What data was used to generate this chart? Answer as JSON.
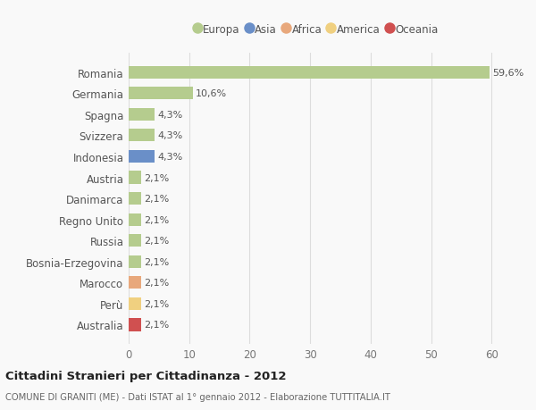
{
  "countries": [
    "Romania",
    "Germania",
    "Spagna",
    "Svizzera",
    "Indonesia",
    "Austria",
    "Danimarca",
    "Regno Unito",
    "Russia",
    "Bosnia-Erzegovina",
    "Marocco",
    "Perù",
    "Australia"
  ],
  "values": [
    59.6,
    10.6,
    4.3,
    4.3,
    4.3,
    2.1,
    2.1,
    2.1,
    2.1,
    2.1,
    2.1,
    2.1,
    2.1
  ],
  "labels": [
    "59,6%",
    "10,6%",
    "4,3%",
    "4,3%",
    "4,3%",
    "2,1%",
    "2,1%",
    "2,1%",
    "2,1%",
    "2,1%",
    "2,1%",
    "2,1%",
    "2,1%"
  ],
  "continents": [
    "Europa",
    "Europa",
    "Europa",
    "Europa",
    "Asia",
    "Europa",
    "Europa",
    "Europa",
    "Europa",
    "Europa",
    "Africa",
    "America",
    "Oceania"
  ],
  "colors": {
    "Europa": "#b5cc8e",
    "Asia": "#6a8fc8",
    "Africa": "#e8a87c",
    "America": "#f0d080",
    "Oceania": "#d05050"
  },
  "legend_entries": [
    "Europa",
    "Asia",
    "Africa",
    "America",
    "Oceania"
  ],
  "legend_colors": [
    "#b5cc8e",
    "#6a8fc8",
    "#e8a87c",
    "#f0d080",
    "#d05050"
  ],
  "xlim": [
    0,
    62
  ],
  "xticks": [
    0,
    10,
    20,
    30,
    40,
    50,
    60
  ],
  "title": "Cittadini Stranieri per Cittadinanza - 2012",
  "subtitle": "COMUNE DI GRANITI (ME) - Dati ISTAT al 1° gennaio 2012 - Elaborazione TUTTITALIA.IT",
  "background_color": "#f9f9f9",
  "grid_color": "#dddddd",
  "bar_height": 0.6
}
